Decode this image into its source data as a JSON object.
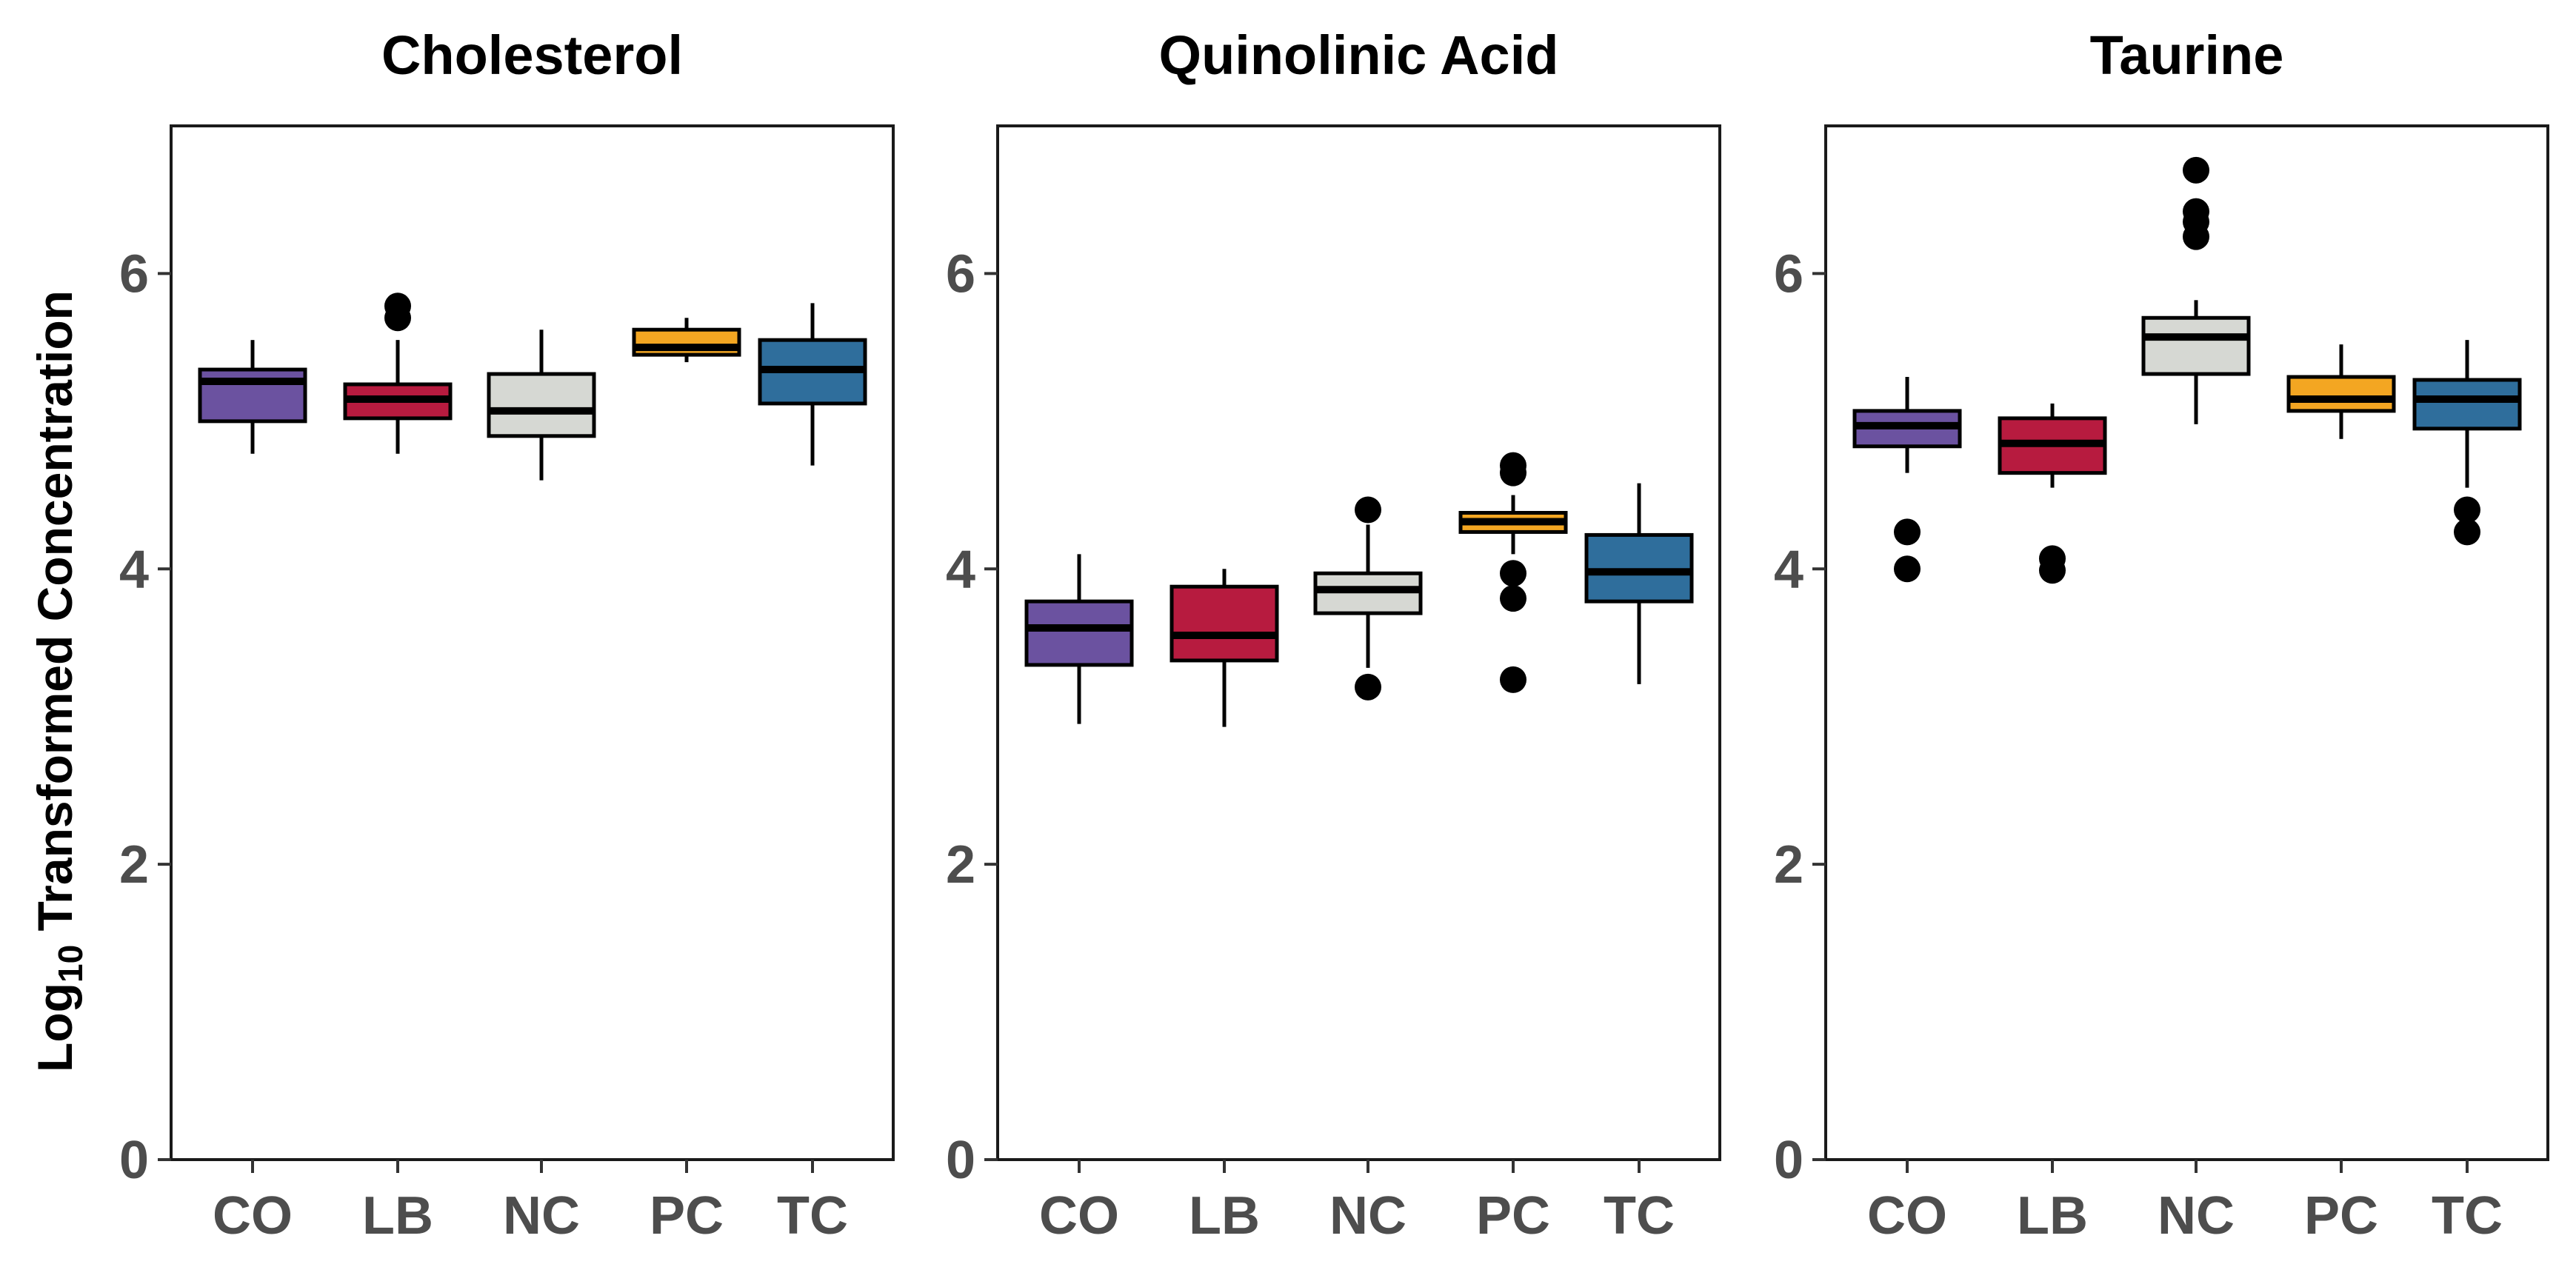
{
  "ylabel": {
    "prefix": "Log",
    "subscript": "10",
    "suffix": " Transformed Concentration"
  },
  "colors": {
    "CO": "#6b52a0",
    "LB": "#b71b3f",
    "NC": "#d6d8d3",
    "PC": "#f3a622",
    "TC": "#2f6e9c"
  },
  "chart_data": [
    {
      "type": "box",
      "title": "Cholesterol",
      "categories": [
        "CO",
        "LB",
        "NC",
        "PC",
        "TC"
      ],
      "ylim": [
        0,
        7
      ],
      "yticks": [
        0,
        2,
        4,
        6
      ],
      "grid": false,
      "boxes": [
        {
          "group": "CO",
          "min": 4.78,
          "q1": 5.0,
          "median": 5.27,
          "q3": 5.35,
          "max": 5.55,
          "outliers": []
        },
        {
          "group": "LB",
          "min": 4.78,
          "q1": 5.02,
          "median": 5.15,
          "q3": 5.25,
          "max": 5.55,
          "outliers": [
            5.7,
            5.78
          ]
        },
        {
          "group": "NC",
          "min": 4.6,
          "q1": 4.9,
          "median": 5.07,
          "q3": 5.32,
          "max": 5.62,
          "outliers": []
        },
        {
          "group": "PC",
          "min": 5.4,
          "q1": 5.45,
          "median": 5.5,
          "q3": 5.62,
          "max": 5.7,
          "outliers": []
        },
        {
          "group": "TC",
          "min": 4.7,
          "q1": 5.12,
          "median": 5.35,
          "q3": 5.55,
          "max": 5.8,
          "outliers": []
        }
      ]
    },
    {
      "type": "box",
      "title": "Quinolinic Acid",
      "categories": [
        "CO",
        "LB",
        "NC",
        "PC",
        "TC"
      ],
      "ylim": [
        0,
        7
      ],
      "yticks": [
        0,
        2,
        4,
        6
      ],
      "grid": false,
      "boxes": [
        {
          "group": "CO",
          "min": 2.95,
          "q1": 3.35,
          "median": 3.6,
          "q3": 3.78,
          "max": 4.1,
          "outliers": []
        },
        {
          "group": "LB",
          "min": 2.93,
          "q1": 3.38,
          "median": 3.55,
          "q3": 3.88,
          "max": 4.0,
          "outliers": []
        },
        {
          "group": "NC",
          "min": 3.33,
          "q1": 3.7,
          "median": 3.86,
          "q3": 3.97,
          "max": 4.3,
          "outliers": [
            4.4,
            3.2
          ]
        },
        {
          "group": "PC",
          "min": 4.1,
          "q1": 4.25,
          "median": 4.32,
          "q3": 4.38,
          "max": 4.5,
          "outliers": [
            4.7,
            4.65,
            3.97,
            3.8,
            3.25
          ]
        },
        {
          "group": "TC",
          "min": 3.22,
          "q1": 3.78,
          "median": 3.98,
          "q3": 4.23,
          "max": 4.58,
          "outliers": []
        }
      ]
    },
    {
      "type": "box",
      "title": "Taurine",
      "categories": [
        "CO",
        "LB",
        "NC",
        "PC",
        "TC"
      ],
      "ylim": [
        0,
        7
      ],
      "yticks": [
        0,
        2,
        4,
        6
      ],
      "grid": false,
      "boxes": [
        {
          "group": "CO",
          "min": 4.65,
          "q1": 4.83,
          "median": 4.97,
          "q3": 5.07,
          "max": 5.3,
          "outliers": [
            4.25,
            4.0
          ]
        },
        {
          "group": "LB",
          "min": 4.55,
          "q1": 4.65,
          "median": 4.85,
          "q3": 5.02,
          "max": 5.12,
          "outliers": [
            4.07,
            3.99
          ]
        },
        {
          "group": "NC",
          "min": 4.98,
          "q1": 5.32,
          "median": 5.57,
          "q3": 5.7,
          "max": 5.82,
          "outliers": [
            6.7,
            6.42,
            6.35,
            6.25
          ]
        },
        {
          "group": "PC",
          "min": 4.88,
          "q1": 5.07,
          "median": 5.15,
          "q3": 5.3,
          "max": 5.52,
          "outliers": []
        },
        {
          "group": "TC",
          "min": 4.55,
          "q1": 4.95,
          "median": 5.15,
          "q3": 5.28,
          "max": 5.55,
          "outliers": [
            4.4,
            4.25
          ]
        }
      ]
    }
  ]
}
